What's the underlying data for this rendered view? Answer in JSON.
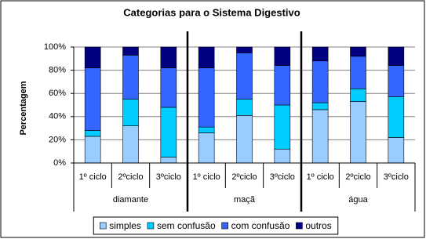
{
  "chart_data": {
    "type": "stacked-bar",
    "title": "Categorias para o Sistema Digestivo",
    "y_label": "Percentagem",
    "categories": [
      "1º ciclo",
      "2ºciclo",
      "3ºciclo",
      "1º ciclo",
      "2ºciclo",
      "3ºciclo",
      "1º ciclo",
      "2ºciclo",
      "3ºciclo"
    ],
    "groups": [
      "diamante",
      "maçã",
      "água"
    ],
    "series": [
      {
        "name": "simples",
        "color": "#99ccff",
        "values": [
          23,
          32,
          5,
          26,
          41,
          12,
          46,
          53,
          22
        ]
      },
      {
        "name": "sem confusão",
        "color": "#00ccff",
        "values": [
          5,
          23,
          43,
          5,
          14,
          38,
          6,
          11,
          35
        ]
      },
      {
        "name": "com confusão",
        "color": "#3366ff",
        "values": [
          54,
          38,
          34,
          51,
          40,
          34,
          36,
          28,
          27
        ]
      },
      {
        "name": "outros",
        "color": "#000080",
        "values": [
          18,
          7,
          18,
          18,
          5,
          16,
          12,
          8,
          16
        ]
      }
    ],
    "ylim": [
      0,
      100
    ],
    "yticks": [
      {
        "value": 0,
        "label": "0%"
      },
      {
        "value": 20,
        "label": "20%"
      },
      {
        "value": 40,
        "label": "40%"
      },
      {
        "value": 60,
        "label": "60%"
      },
      {
        "value": 80,
        "label": "80%"
      },
      {
        "value": 100,
        "label": "100%"
      }
    ],
    "grid": true
  }
}
